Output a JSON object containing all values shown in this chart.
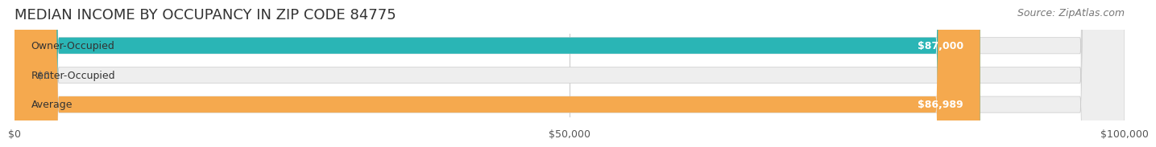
{
  "title": "MEDIAN INCOME BY OCCUPANCY IN ZIP CODE 84775",
  "source": "Source: ZipAtlas.com",
  "categories": [
    "Owner-Occupied",
    "Renter-Occupied",
    "Average"
  ],
  "values": [
    87000,
    0,
    86989
  ],
  "labels": [
    "$87,000",
    "$0",
    "$86,989"
  ],
  "bar_colors": [
    "#2ab5b5",
    "#c9a8d4",
    "#f5a94e"
  ],
  "bar_bg_color": "#f0f0f0",
  "xlim": [
    0,
    100000
  ],
  "xticks": [
    0,
    50000,
    100000
  ],
  "xticklabels": [
    "$0",
    "$50,000",
    "$100,000"
  ],
  "title_fontsize": 13,
  "source_fontsize": 9,
  "label_fontsize": 9,
  "tick_fontsize": 9,
  "background_color": "#ffffff",
  "bar_height": 0.55,
  "bar_label_color": "#ffffff",
  "renter_label_color": "#555555"
}
